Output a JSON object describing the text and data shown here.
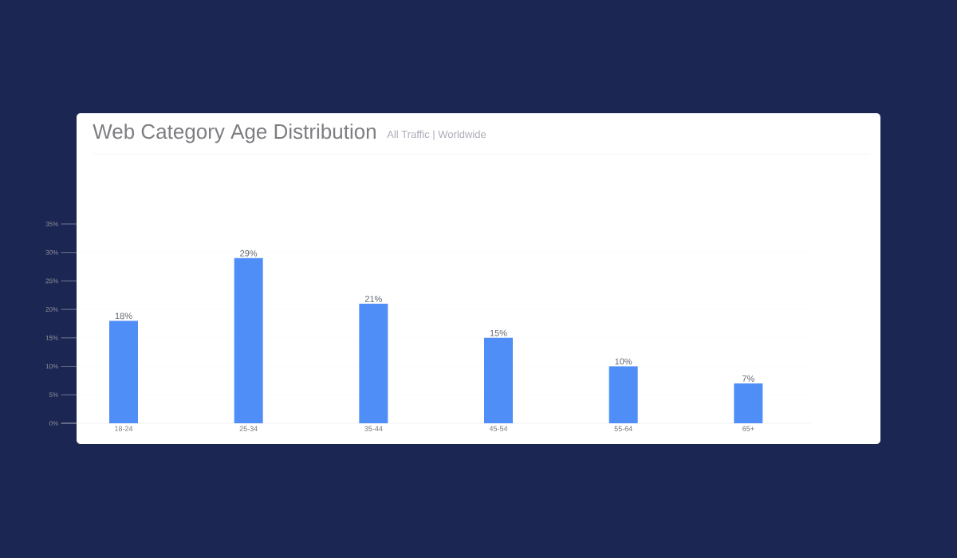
{
  "chart_data": {
    "type": "bar",
    "title": "Web Category Age Distribution",
    "subtitle": "All Traffic | Worldwide",
    "categories": [
      "18-24",
      "25-34",
      "35-44",
      "45-54",
      "55-64",
      "65+"
    ],
    "values": [
      18,
      29,
      21,
      15,
      10,
      7
    ],
    "value_labels": [
      "18%",
      "29%",
      "21%",
      "15%",
      "10%",
      "7%"
    ],
    "color": "#4f8ef7",
    "ylim": [
      0,
      35
    ],
    "yticks": [
      {
        "value": 0,
        "label": "0%"
      },
      {
        "value": 5,
        "label": "5%"
      },
      {
        "value": 10,
        "label": "10%"
      },
      {
        "value": 15,
        "label": "15%"
      },
      {
        "value": 20,
        "label": "20%"
      },
      {
        "value": 25,
        "label": "25%"
      },
      {
        "value": 30,
        "label": "30%"
      },
      {
        "value": 35,
        "label": "35%"
      }
    ],
    "grid": "y"
  }
}
